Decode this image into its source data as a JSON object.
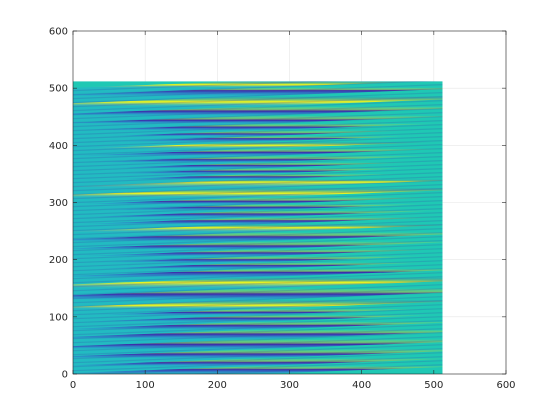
{
  "chart_data": {
    "type": "heatmap",
    "title": "",
    "xlabel": "",
    "ylabel": "",
    "xlim": [
      0,
      600
    ],
    "ylim": [
      0,
      600
    ],
    "xticks": [
      0,
      100,
      200,
      300,
      400,
      500,
      600
    ],
    "yticks": [
      0,
      100,
      200,
      300,
      400,
      500,
      600
    ],
    "grid": true,
    "image_extent": {
      "x": [
        0,
        512
      ],
      "y": [
        0,
        512
      ]
    },
    "colormap": "parula",
    "colors": {
      "low": "#3e26a8",
      "mid_low": "#2e87f7",
      "mid": "#1fc8b4",
      "mid_high": "#b8c13c",
      "high": "#f9fb15"
    },
    "pattern": "horizontal sinusoidal fringes with slight upward tilt; fringe spacing widens toward y≈150, y≈330 and y≈480 and narrows in between",
    "bands": [
      {
        "y": 8,
        "value": "low"
      },
      {
        "y": 20,
        "value": "low"
      },
      {
        "y": 35,
        "value": "low"
      },
      {
        "y": 52,
        "value": "low"
      },
      {
        "y": 70,
        "value": "low"
      },
      {
        "y": 85,
        "value": "low"
      },
      {
        "y": 98,
        "value": "low"
      },
      {
        "y": 108,
        "value": "low"
      },
      {
        "y": 120,
        "value": "high"
      },
      {
        "y": 140,
        "value": "low"
      },
      {
        "y": 160,
        "value": "high"
      },
      {
        "y": 178,
        "value": "low"
      },
      {
        "y": 190,
        "value": "low"
      },
      {
        "y": 200,
        "value": "low"
      },
      {
        "y": 212,
        "value": "low"
      },
      {
        "y": 224,
        "value": "low"
      },
      {
        "y": 240,
        "value": "low"
      },
      {
        "y": 256,
        "value": "high"
      },
      {
        "y": 268,
        "value": "low"
      },
      {
        "y": 280,
        "value": "low"
      },
      {
        "y": 292,
        "value": "low"
      },
      {
        "y": 302,
        "value": "low"
      },
      {
        "y": 316,
        "value": "high"
      },
      {
        "y": 336,
        "value": "high"
      },
      {
        "y": 345,
        "value": "low"
      },
      {
        "y": 355,
        "value": "low"
      },
      {
        "y": 365,
        "value": "low"
      },
      {
        "y": 375,
        "value": "low"
      },
      {
        "y": 388,
        "value": "low"
      },
      {
        "y": 400,
        "value": "high"
      },
      {
        "y": 412,
        "value": "low"
      },
      {
        "y": 420,
        "value": "low"
      },
      {
        "y": 432,
        "value": "low"
      },
      {
        "y": 444,
        "value": "low"
      },
      {
        "y": 460,
        "value": "low"
      },
      {
        "y": 476,
        "value": "high"
      },
      {
        "y": 496,
        "value": "low"
      },
      {
        "y": 506,
        "value": "high"
      }
    ]
  }
}
